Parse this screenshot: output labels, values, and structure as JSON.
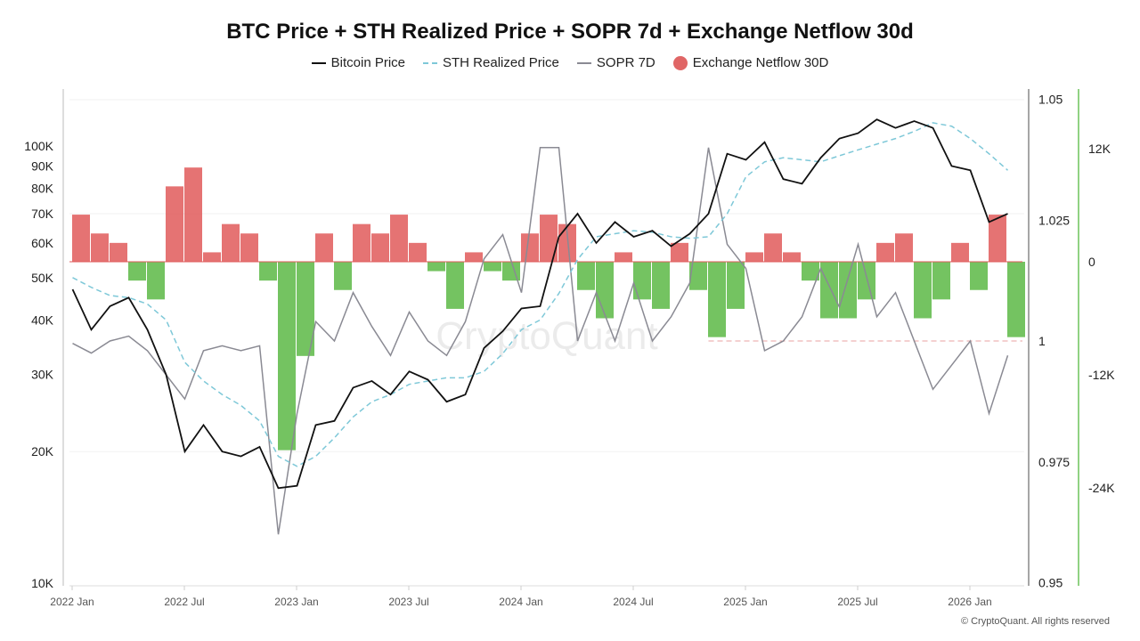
{
  "chart_data": {
    "type": "line",
    "title": "BTC Price + STH Realized Price + SOPR 7d + Exchange Netflow 30d",
    "legend": [
      "Bitcoin Price",
      "STH Realized Price",
      "SOPR 7D",
      "Exchange Netflow 30D"
    ],
    "legend_placement": "top",
    "colors": {
      "btc": "#111111",
      "sth": "#7ec8d8",
      "sopr": "#8a8a93",
      "inflow": "#e05a5a",
      "outflow": "#5cb845"
    },
    "x": [
      "2022-01",
      "2022-02",
      "2022-03",
      "2022-04",
      "2022-05",
      "2022-06",
      "2022-07",
      "2022-08",
      "2022-09",
      "2022-10",
      "2022-11",
      "2022-12",
      "2023-01",
      "2023-02",
      "2023-03",
      "2023-04",
      "2023-05",
      "2023-06",
      "2023-07",
      "2023-08",
      "2023-09",
      "2023-10",
      "2023-11",
      "2023-12",
      "2024-01",
      "2024-02",
      "2024-03",
      "2024-04",
      "2024-05",
      "2024-06",
      "2024-07",
      "2024-08",
      "2024-09",
      "2024-10",
      "2024-11",
      "2024-12",
      "2025-01",
      "2025-02",
      "2025-03",
      "2025-04",
      "2025-05",
      "2025-06",
      "2025-07",
      "2025-08",
      "2025-09",
      "2025-10",
      "2025-11",
      "2025-12",
      "2026-01",
      "2026-02",
      "2026-03"
    ],
    "series": [
      {
        "name": "Bitcoin Price",
        "axis": "left",
        "values": [
          47000,
          38000,
          43000,
          45000,
          38000,
          30000,
          20000,
          23000,
          20000,
          19500,
          20500,
          16500,
          16700,
          23000,
          23500,
          28000,
          29000,
          27000,
          30500,
          29200,
          26000,
          27000,
          34500,
          37700,
          42500,
          43000,
          62000,
          70000,
          60000,
          67000,
          62000,
          64000,
          59000,
          63000,
          70000,
          96000,
          93000,
          102000,
          84000,
          82000,
          94000,
          104000,
          107000,
          115000,
          110000,
          114000,
          110000,
          90000,
          88000,
          67000,
          70000
        ]
      },
      {
        "name": "STH Realized Price",
        "axis": "left",
        "values": [
          50000,
          47500,
          45500,
          45000,
          43500,
          40000,
          32000,
          29000,
          27000,
          25500,
          23500,
          19500,
          18500,
          19500,
          21500,
          24000,
          26000,
          27000,
          28500,
          29000,
          29500,
          29500,
          30500,
          33500,
          38000,
          40000,
          46000,
          55000,
          62000,
          63000,
          64000,
          63500,
          62000,
          61500,
          62000,
          70000,
          85000,
          92000,
          94000,
          93000,
          92000,
          95000,
          98000,
          101000,
          104000,
          108000,
          113000,
          111000,
          104000,
          96000,
          88000
        ]
      },
      {
        "name": "SOPR 7D",
        "axis": "right",
        "values": [
          0.9995,
          0.9975,
          1.0,
          1.001,
          0.998,
          0.993,
          0.988,
          0.998,
          0.999,
          0.998,
          0.999,
          0.96,
          0.985,
          1.004,
          1.0,
          1.01,
          1.003,
          0.997,
          1.006,
          1.0,
          0.997,
          1.004,
          1.017,
          1.022,
          1.01,
          1.04,
          1.04,
          1.0,
          1.01,
          1.0,
          1.012,
          1.0,
          1.005,
          1.012,
          1.04,
          1.02,
          1.015,
          0.998,
          1.0,
          1.005,
          1.015,
          1.007,
          1.02,
          1.005,
          1.01,
          1.0,
          0.99,
          0.995,
          1.0,
          0.985,
          0.997
        ]
      },
      {
        "name": "Exchange Netflow 30D",
        "axis": "netflow",
        "values": [
          5000,
          3000,
          2000,
          -2000,
          -4000,
          8000,
          10000,
          1000,
          4000,
          3000,
          -2000,
          -20000,
          -10000,
          3000,
          -3000,
          4000,
          3000,
          5000,
          2000,
          -1000,
          -5000,
          1000,
          -1000,
          -2000,
          3000,
          5000,
          4000,
          -3000,
          -6000,
          1000,
          -4000,
          -5000,
          2000,
          -3000,
          -8000,
          -5000,
          1000,
          3000,
          1000,
          -2000,
          -6000,
          -6000,
          -4000,
          2000,
          3000,
          -6000,
          -4000,
          2000,
          -3000,
          5000,
          -8000
        ]
      }
    ],
    "x_ticks": [
      "2022 Jan",
      "2022 Jul",
      "2023 Jan",
      "2023 Jul",
      "2024 Jan",
      "2024 Jul",
      "2025 Jan",
      "2025 Jul",
      "2026 Jan"
    ],
    "left_axis": {
      "scale": "log",
      "ticks": [
        "10K",
        "20K",
        "30K",
        "40K",
        "50K",
        "60K",
        "70K",
        "80K",
        "90K",
        "100K"
      ],
      "tick_values": [
        10000,
        20000,
        30000,
        40000,
        50000,
        60000,
        70000,
        80000,
        90000,
        100000
      ],
      "range": [
        10000,
        130000
      ]
    },
    "right_axis": {
      "ticks": [
        "1.05",
        "1.025",
        "1",
        "0.975",
        "0.95"
      ],
      "tick_values": [
        1.05,
        1.025,
        1,
        0.975,
        0.95
      ],
      "range": [
        0.95,
        1.05
      ]
    },
    "netflow_axis": {
      "ticks": [
        "12K",
        "0",
        "-12K",
        "-24K"
      ],
      "tick_values": [
        12000,
        0,
        -12000,
        -24000
      ]
    },
    "reference_line": {
      "axis": "right",
      "value": 1,
      "color": "#e8a0a0"
    },
    "watermark": "CryptoQuant"
  },
  "copyright": "© CryptoQuant. All rights reserved"
}
